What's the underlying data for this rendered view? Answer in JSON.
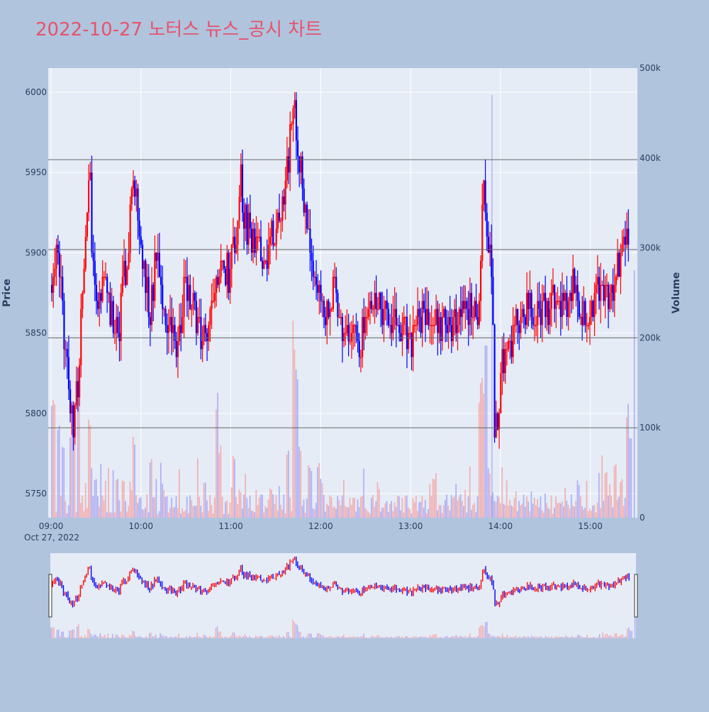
{
  "chart_data": {
    "type": "candlestick",
    "title": "2022-10-27 노터스 뉴스_공시 차트",
    "date_label": "Oct 27, 2022",
    "ylabel_left": "Price",
    "ylabel_right": "Volume",
    "price_range": [
      5735,
      6015
    ],
    "volume_range": [
      0,
      500000
    ],
    "price_ticks": [
      5750,
      5800,
      5850,
      5900,
      5950,
      6000
    ],
    "volume_ticks": [
      {
        "value": 0,
        "label": "0"
      },
      {
        "value": 100000,
        "label": "100k"
      },
      {
        "value": 200000,
        "label": "200k"
      },
      {
        "value": 300000,
        "label": "300k"
      },
      {
        "value": 400000,
        "label": "400k"
      },
      {
        "value": 500000,
        "label": "500k"
      }
    ],
    "x_range": [
      "09:00",
      "15:30"
    ],
    "x_ticks": [
      "09:00",
      "10:00",
      "11:00",
      "12:00",
      "13:00",
      "14:00",
      "15:00"
    ],
    "horizontal_lines": [
      5958,
      5902,
      5847,
      5791
    ],
    "colors": {
      "up": "#ff0000",
      "down": "#0000ff",
      "volume_up": "#f4a6a6",
      "volume_down": "#a6a6f4",
      "title": "#e8526b",
      "background": "#b0c4de",
      "plot": "#e5ecf6"
    },
    "price_keypoints": [
      [
        "09:00",
        5880
      ],
      [
        "09:04",
        5905
      ],
      [
        "09:07",
        5860
      ],
      [
        "09:10",
        5845
      ],
      [
        "09:13",
        5800
      ],
      [
        "09:15",
        5790
      ],
      [
        "09:18",
        5830
      ],
      [
        "09:22",
        5900
      ],
      [
        "09:25",
        5955
      ],
      [
        "09:28",
        5880
      ],
      [
        "09:32",
        5870
      ],
      [
        "09:36",
        5885
      ],
      [
        "09:40",
        5860
      ],
      [
        "09:44",
        5850
      ],
      [
        "09:48",
        5880
      ],
      [
        "09:52",
        5920
      ],
      [
        "09:55",
        5948
      ],
      [
        "09:58",
        5905
      ],
      [
        "10:02",
        5890
      ],
      [
        "10:06",
        5860
      ],
      [
        "10:10",
        5900
      ],
      [
        "10:14",
        5875
      ],
      [
        "10:18",
        5850
      ],
      [
        "10:22",
        5840
      ],
      [
        "10:26",
        5860
      ],
      [
        "10:30",
        5880
      ],
      [
        "10:34",
        5865
      ],
      [
        "10:38",
        5855
      ],
      [
        "10:42",
        5850
      ],
      [
        "10:46",
        5860
      ],
      [
        "10:50",
        5880
      ],
      [
        "10:54",
        5900
      ],
      [
        "10:58",
        5885
      ],
      [
        "11:02",
        5905
      ],
      [
        "11:06",
        5945
      ],
      [
        "11:10",
        5915
      ],
      [
        "11:14",
        5905
      ],
      [
        "11:18",
        5910
      ],
      [
        "11:22",
        5895
      ],
      [
        "11:26",
        5905
      ],
      [
        "11:30",
        5925
      ],
      [
        "11:34",
        5935
      ],
      [
        "11:38",
        5960
      ],
      [
        "11:42",
        5990
      ],
      [
        "11:45",
        5960
      ],
      [
        "11:48",
        5930
      ],
      [
        "11:52",
        5905
      ],
      [
        "11:56",
        5880
      ],
      [
        "12:00",
        5870
      ],
      [
        "12:04",
        5860
      ],
      [
        "12:08",
        5875
      ],
      [
        "12:12",
        5855
      ],
      [
        "12:16",
        5850
      ],
      [
        "12:20",
        5855
      ],
      [
        "12:24",
        5845
      ],
      [
        "12:28",
        5848
      ],
      [
        "12:32",
        5860
      ],
      [
        "12:36",
        5875
      ],
      [
        "12:40",
        5870
      ],
      [
        "12:44",
        5862
      ],
      [
        "12:48",
        5860
      ],
      [
        "12:52",
        5855
      ],
      [
        "12:56",
        5850
      ],
      [
        "13:00",
        5845
      ],
      [
        "13:04",
        5852
      ],
      [
        "13:08",
        5860
      ],
      [
        "13:12",
        5866
      ],
      [
        "13:16",
        5862
      ],
      [
        "13:20",
        5858
      ],
      [
        "13:24",
        5860
      ],
      [
        "13:28",
        5855
      ],
      [
        "13:32",
        5858
      ],
      [
        "13:36",
        5862
      ],
      [
        "13:40",
        5865
      ],
      [
        "13:44",
        5860
      ],
      [
        "13:46",
        5880
      ],
      [
        "13:48",
        5940
      ],
      [
        "13:50",
        5925
      ],
      [
        "13:52",
        5900
      ],
      [
        "13:54",
        5880
      ],
      [
        "13:55",
        5815
      ],
      [
        "13:56",
        5780
      ],
      [
        "13:58",
        5805
      ],
      [
        "14:00",
        5830
      ],
      [
        "14:04",
        5835
      ],
      [
        "14:08",
        5850
      ],
      [
        "14:12",
        5858
      ],
      [
        "14:16",
        5865
      ],
      [
        "14:20",
        5860
      ],
      [
        "14:24",
        5868
      ],
      [
        "14:28",
        5862
      ],
      [
        "14:32",
        5870
      ],
      [
        "14:36",
        5875
      ],
      [
        "14:40",
        5865
      ],
      [
        "14:44",
        5860
      ],
      [
        "14:48",
        5880
      ],
      [
        "14:52",
        5868
      ],
      [
        "14:56",
        5860
      ],
      [
        "15:00",
        5865
      ],
      [
        "15:04",
        5880
      ],
      [
        "15:08",
        5878
      ],
      [
        "15:12",
        5872
      ],
      [
        "15:16",
        5885
      ],
      [
        "15:20",
        5895
      ],
      [
        "15:24",
        5915
      ]
    ],
    "volume_spikes": [
      [
        "09:00",
        140000
      ],
      [
        "09:02",
        130000
      ],
      [
        "09:05",
        110000
      ],
      [
        "09:08",
        95000
      ],
      [
        "09:13",
        100000
      ],
      [
        "09:15",
        125000
      ],
      [
        "09:18",
        170000
      ],
      [
        "09:25",
        120000
      ],
      [
        "09:44",
        52000
      ],
      [
        "09:55",
        95000
      ],
      [
        "10:06",
        68000
      ],
      [
        "10:14",
        38000
      ],
      [
        "10:42",
        40000
      ],
      [
        "10:50",
        145000
      ],
      [
        "10:52",
        88000
      ],
      [
        "11:02",
        70000
      ],
      [
        "11:06",
        35000
      ],
      [
        "11:26",
        36000
      ],
      [
        "11:38",
        80000
      ],
      [
        "11:42",
        220000
      ],
      [
        "11:43",
        175000
      ],
      [
        "11:44",
        160000
      ],
      [
        "11:46",
        80000
      ],
      [
        "11:52",
        68000
      ],
      [
        "11:58",
        70000
      ],
      [
        "12:00",
        47000
      ],
      [
        "13:46",
        150000
      ],
      [
        "13:48",
        165000
      ],
      [
        "13:50",
        200000
      ],
      [
        "13:52",
        55000
      ],
      [
        "14:52",
        42000
      ],
      [
        "15:10",
        52000
      ],
      [
        "15:16",
        60000
      ],
      [
        "15:20",
        45000
      ],
      [
        "15:24",
        130000
      ],
      [
        "15:26",
        110000
      ],
      [
        "15:30",
        275000
      ]
    ]
  }
}
